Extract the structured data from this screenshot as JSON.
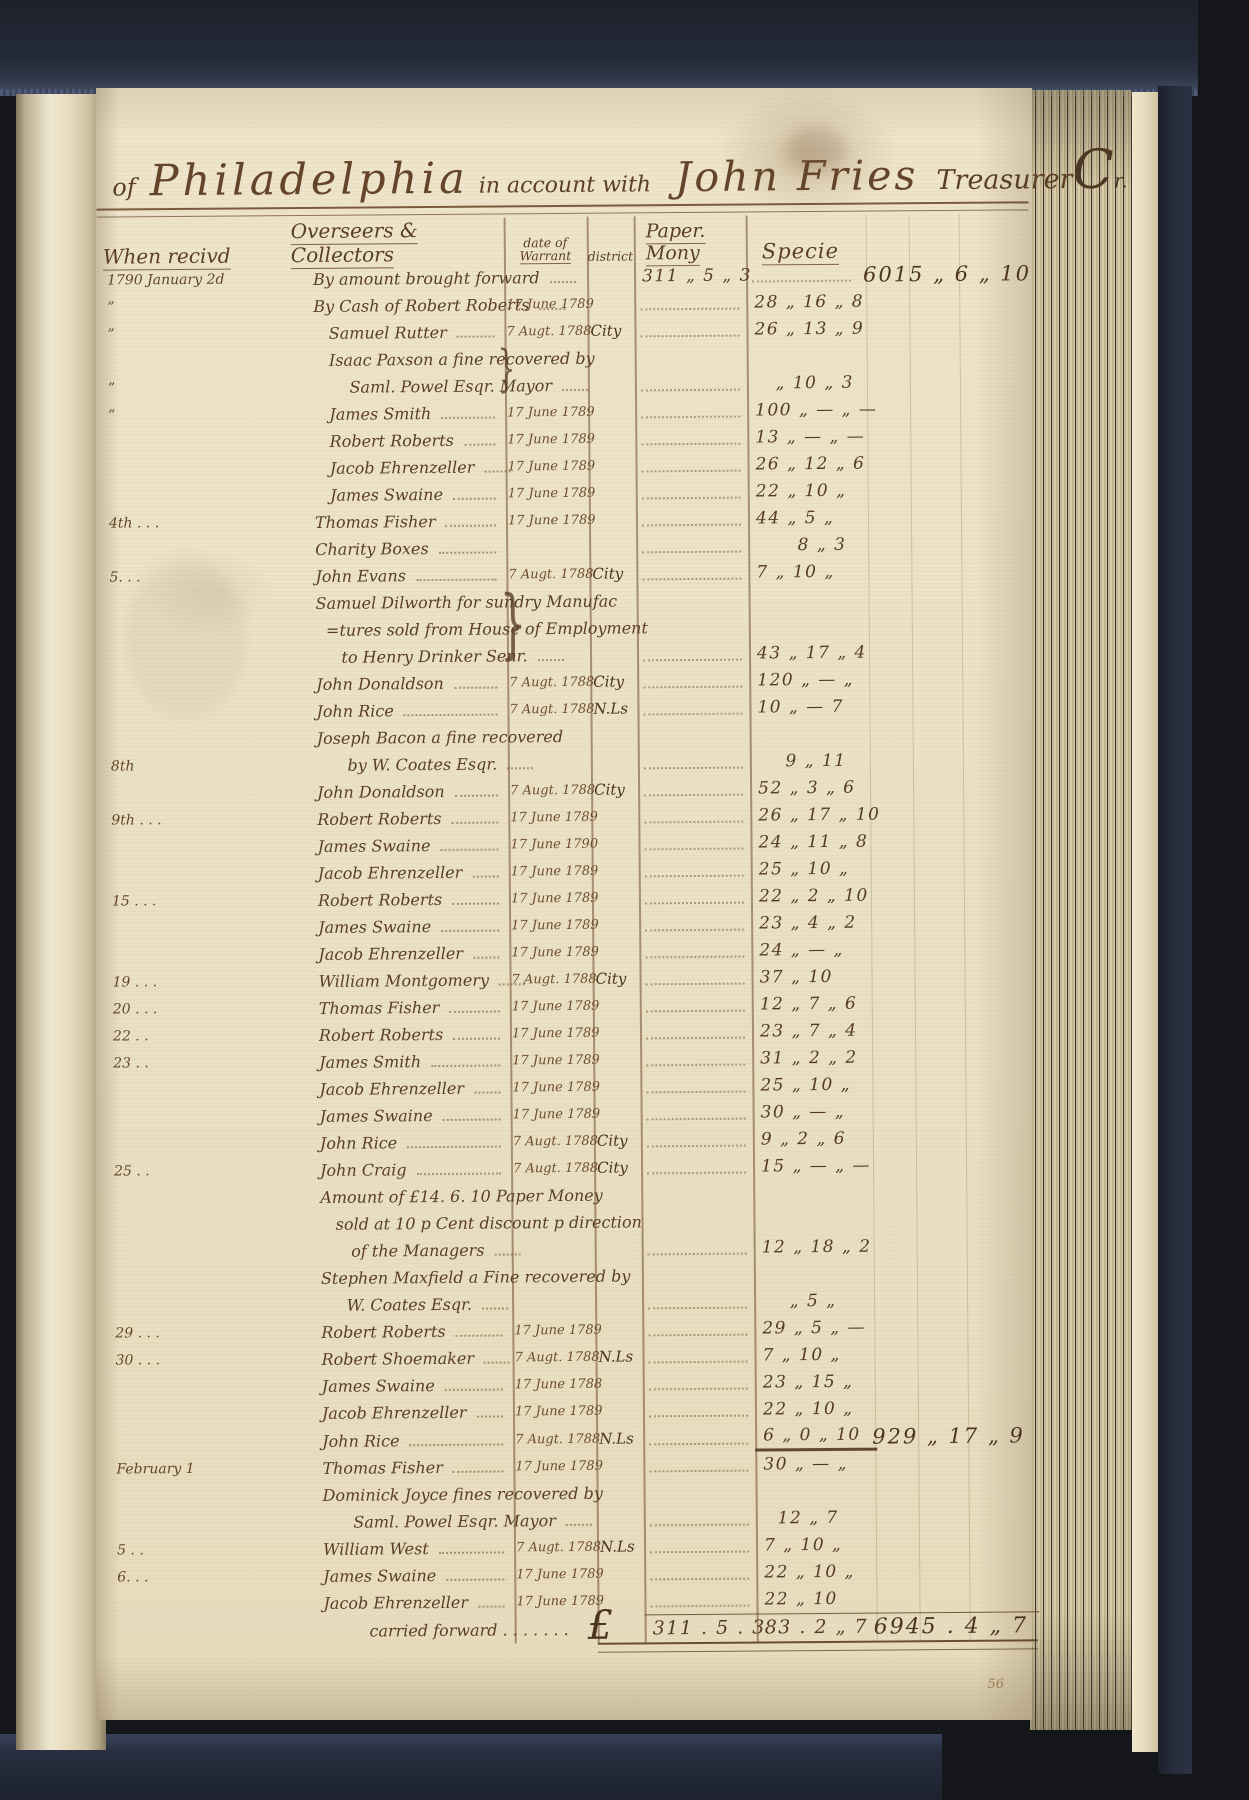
{
  "palette": {
    "ink": "#5a3e26",
    "ink_dark": "#4c3520",
    "rule": "#6f4a29",
    "paper": "#ece2c8",
    "cover_navy": "#242a38",
    "page_edge": "#d9cdaf"
  },
  "ledger": {
    "heading": {
      "prefix": "of",
      "place": "Philadelphia",
      "middle": "in account with",
      "name": "John Fries",
      "suffix": "Treasurer",
      "mark_c": "C",
      "mark_r": "r."
    },
    "columns": {
      "when": "When recivd",
      "overseers": "Overseers & Collectors",
      "warrant_line1": "date of",
      "warrant_line2": "Warrant",
      "district": "district",
      "paper": "Paper. Mony",
      "specie": "Specie"
    },
    "pound": "£",
    "brace": "}",
    "page_number": "56",
    "rows": [
      {
        "when": "1790 January 2d",
        "lines": [
          "By amount brought forward"
        ],
        "paper": "311 „ 5 „ 3",
        "margin": "6015 „ 6 „ 10"
      },
      {
        "when": "”",
        "lines": [
          "By Cash of Robert Roberts"
        ],
        "warrant": "17 June 1789",
        "specie": "28 „ 16 „ 8"
      },
      {
        "when": "”",
        "lines": [
          "   Samuel Rutter"
        ],
        "warrant": "7 Augt. 1788",
        "district": "City",
        "specie": "26 „ 13 „ 9"
      },
      {
        "when": "”",
        "lines": [
          "   Isaac Paxson a fine recovered by",
          "       Saml. Powel Esqr. Mayor"
        ],
        "brace": true,
        "specie": "   „ 10 „ 3"
      },
      {
        "when": "”",
        "lines": [
          "   James Smith"
        ],
        "warrant": "17 June 1789",
        "specie": "100 „ — „ —"
      },
      {
        "lines": [
          "   Robert Roberts"
        ],
        "warrant": "17 June 1789",
        "specie": "13 „ — „ —"
      },
      {
        "lines": [
          "   Jacob Ehrenzeller"
        ],
        "warrant": "17 June 1789",
        "specie": "26 „ 12 „ 6"
      },
      {
        "lines": [
          "   James Swaine"
        ],
        "warrant": "17 June 1789",
        "specie": "22 „ 10 „"
      },
      {
        "when": "4th . . .",
        "lines": [
          "Thomas Fisher"
        ],
        "warrant": "17 June 1789",
        "specie": "44 „ 5 „"
      },
      {
        "lines": [
          "Charity Boxes"
        ],
        "specie": "      8 „ 3"
      },
      {
        "when": "5. . .",
        "lines": [
          "John Evans"
        ],
        "warrant": "7 Augt. 1788",
        "district": "City",
        "specie": "7 „ 10 „"
      },
      {
        "lines": [
          "Samuel Dilworth for sundry Manufac",
          "  =tures sold from House of Employment",
          "     to Henry Drinker Senr."
        ],
        "brace": true,
        "specie": "43 „ 17 „ 4"
      },
      {
        "lines": [
          "John Donaldson"
        ],
        "warrant": "7 Augt. 1788",
        "district": "City",
        "specie": "120 „ — „"
      },
      {
        "lines": [
          "John Rice"
        ],
        "warrant": "7 Augt. 1788",
        "district": "N.Ls",
        "specie": "10 „ — 7"
      },
      {
        "when": "8th",
        "lines": [
          "Joseph Bacon a fine recovered",
          "      by W. Coates Esqr."
        ],
        "specie": "    9 „ 11"
      },
      {
        "lines": [
          "John Donaldson"
        ],
        "warrant": "7 Augt. 1788",
        "district": "City",
        "specie": "52 „ 3 „ 6"
      },
      {
        "when": "9th . . .",
        "lines": [
          "Robert Roberts"
        ],
        "warrant": "17 June 1789",
        "specie": "26 „ 17 „ 10"
      },
      {
        "lines": [
          "James Swaine"
        ],
        "warrant": "17 June 1790",
        "specie": "24 „ 11 „ 8"
      },
      {
        "lines": [
          "Jacob Ehrenzeller"
        ],
        "warrant": "17 June 1789",
        "specie": "25 „ 10 „"
      },
      {
        "when": "15 . . .",
        "lines": [
          "Robert Roberts"
        ],
        "warrant": "17 June 1789",
        "specie": "22 „ 2 „ 10"
      },
      {
        "lines": [
          "James Swaine"
        ],
        "warrant": "17 June 1789",
        "specie": "23 „ 4 „ 2"
      },
      {
        "lines": [
          "Jacob Ehrenzeller"
        ],
        "warrant": "17 June 1789",
        "specie": "24 „ — „"
      },
      {
        "when": "19 . . .",
        "lines": [
          "William Montgomery"
        ],
        "warrant": "7 Augt. 1788",
        "district": "City",
        "specie": "37 „ 10"
      },
      {
        "when": "20 . . .",
        "lines": [
          "Thomas Fisher"
        ],
        "warrant": "17 June 1789",
        "specie": "12 „ 7 „ 6"
      },
      {
        "when": "22 . .",
        "lines": [
          "Robert Roberts"
        ],
        "warrant": "17 June 1789",
        "specie": "23 „ 7 „ 4"
      },
      {
        "when": "23 . .",
        "lines": [
          "James Smith"
        ],
        "warrant": "17 June 1789",
        "specie": "31 „ 2 „ 2"
      },
      {
        "lines": [
          "Jacob Ehrenzeller"
        ],
        "warrant": "17 June 1789",
        "specie": "25 „ 10 „"
      },
      {
        "lines": [
          "James Swaine"
        ],
        "warrant": "17 June 1789",
        "specie": "30 „ — „"
      },
      {
        "lines": [
          "John Rice"
        ],
        "warrant": "7 Augt. 1788",
        "district": "City",
        "specie": "9 „ 2 „ 6"
      },
      {
        "when": "25 . .",
        "lines": [
          "John Craig"
        ],
        "warrant": "7 Augt. 1788",
        "district": "City",
        "specie": "15 „ — „ —"
      },
      {
        "lines": [
          "Amount of £14. 6. 10 Paper Money",
          "   sold at 10 p Cent discount p direction",
          "      of the Managers"
        ],
        "specie": "12 „ 18 „ 2"
      },
      {
        "lines": [
          "Stephen Maxfield a Fine recovered by",
          "     W. Coates Esqr."
        ],
        "specie": "    „ 5 „"
      },
      {
        "when": "29 . . .",
        "lines": [
          "Robert Roberts"
        ],
        "warrant": "17 June 1789",
        "specie": "29 „ 5 „ —"
      },
      {
        "when": "30 . . .",
        "lines": [
          "Robert Shoemaker"
        ],
        "warrant": "7 Augt. 1788",
        "district": "N.Ls",
        "specie": "7 „ 10 „"
      },
      {
        "lines": [
          "James Swaine"
        ],
        "warrant": "17 June 1788",
        "specie": "23 „ 15 „"
      },
      {
        "lines": [
          "Jacob Ehrenzeller"
        ],
        "warrant": "17 June 1789",
        "specie": "22 „ 10 „"
      },
      {
        "lines": [
          "John Rice"
        ],
        "warrant": "7 Augt. 1788",
        "district": "N.Ls",
        "specie": "6 „ 0 „ 10",
        "underline": true,
        "margin": "929 „ 17 „ 9"
      },
      {
        "when": "February 1",
        "lines": [
          "Thomas Fisher"
        ],
        "warrant": "17 June 1789",
        "specie": "30 „ — „"
      },
      {
        "lines": [
          "Dominick Joyce fines recovered by",
          "      Saml. Powel Esqr. Mayor"
        ],
        "specie": "  12 „ 7"
      },
      {
        "when": "5 . .",
        "lines": [
          "William West"
        ],
        "warrant": "7 Augt. 1788",
        "district": "N.Ls",
        "specie": "7 „ 10 „"
      },
      {
        "when": "6. . .",
        "lines": [
          "James Swaine"
        ],
        "warrant": "17 June 1789",
        "specie": "22 „ 10 „"
      },
      {
        "lines": [
          "Jacob Ehrenzeller"
        ],
        "warrant": "17 June 1789",
        "specie": "22 „ 10"
      },
      {
        "lines": [
          "         carried forward . . . . . . ."
        ],
        "pound": true,
        "leader": false,
        "paper": "311 . 5 . 3",
        "specie": "83 . 2 „ 7",
        "margin": "6945 . 4 „ 7",
        "carried": true
      }
    ]
  }
}
